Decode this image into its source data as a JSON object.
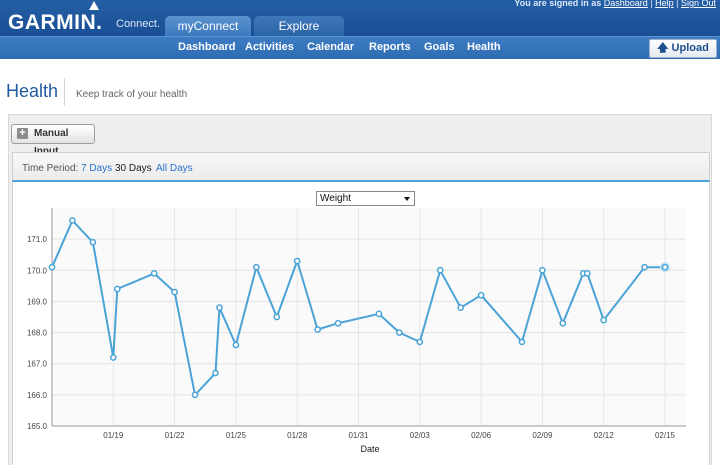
{
  "header": {
    "logo": "GARMIN.",
    "logo_sub": "Connect.",
    "user_prefix": "You are signed in as",
    "user_link_1": "Dashboard",
    "user_link_2": "Help",
    "user_link_3": "Sign Out",
    "tabs": [
      {
        "label": "myConnect"
      },
      {
        "label": "Explore"
      }
    ],
    "nav": [
      {
        "label": "Dashboard"
      },
      {
        "label": "Activities"
      },
      {
        "label": "Calendar"
      },
      {
        "label": "Reports"
      },
      {
        "label": "Goals"
      },
      {
        "label": "Health"
      }
    ],
    "upload_label": "Upload"
  },
  "page": {
    "title": "Health",
    "subtitle": "Keep track of your health"
  },
  "toolbar": {
    "manual_input_label": "Manual Input"
  },
  "period": {
    "label": "Time Period:",
    "options": [
      {
        "label": "7 Days"
      },
      {
        "label": "30 Days"
      },
      {
        "label": "All Days"
      }
    ],
    "selected": "30 Days"
  },
  "metric_select": {
    "value": "Weight"
  },
  "colors": {
    "brand_blue": "#1a4f94",
    "line": "#4aa3d6",
    "link": "#2a72c8"
  },
  "chart_data": {
    "type": "line",
    "xlabel": "Date",
    "ylabel": "",
    "ylim": [
      165.0,
      172.0
    ],
    "yticks": [
      "165.0",
      "166.0",
      "167.0",
      "168.0",
      "169.0",
      "170.0",
      "171.0"
    ],
    "x_tick_labels": [
      "01/19",
      "01/22",
      "01/25",
      "01/28",
      "01/31",
      "02/03",
      "02/06",
      "02/09",
      "02/12",
      "02/15"
    ],
    "grid": true,
    "series": [
      {
        "x": [
          "01/16",
          "01/17",
          "01/18",
          "01/19",
          "01/19",
          "01/21",
          "01/22",
          "01/23",
          "01/24",
          "01/24",
          "01/25",
          "01/26",
          "01/27",
          "01/28",
          "01/29",
          "01/30",
          "02/01",
          "02/02",
          "02/03",
          "02/04",
          "02/05",
          "02/06",
          "02/08",
          "02/09",
          "02/10",
          "02/11",
          "02/11",
          "02/12",
          "02/14",
          "02/15"
        ],
        "values": [
          170.1,
          171.6,
          170.9,
          167.2,
          169.4,
          169.9,
          169.3,
          166.0,
          166.7,
          168.8,
          167.6,
          170.1,
          168.5,
          170.3,
          168.1,
          168.3,
          168.6,
          168.0,
          167.7,
          170.0,
          168.8,
          169.2,
          167.7,
          170.0,
          168.3,
          169.9,
          169.9,
          168.4,
          170.1,
          170.1
        ]
      }
    ]
  }
}
